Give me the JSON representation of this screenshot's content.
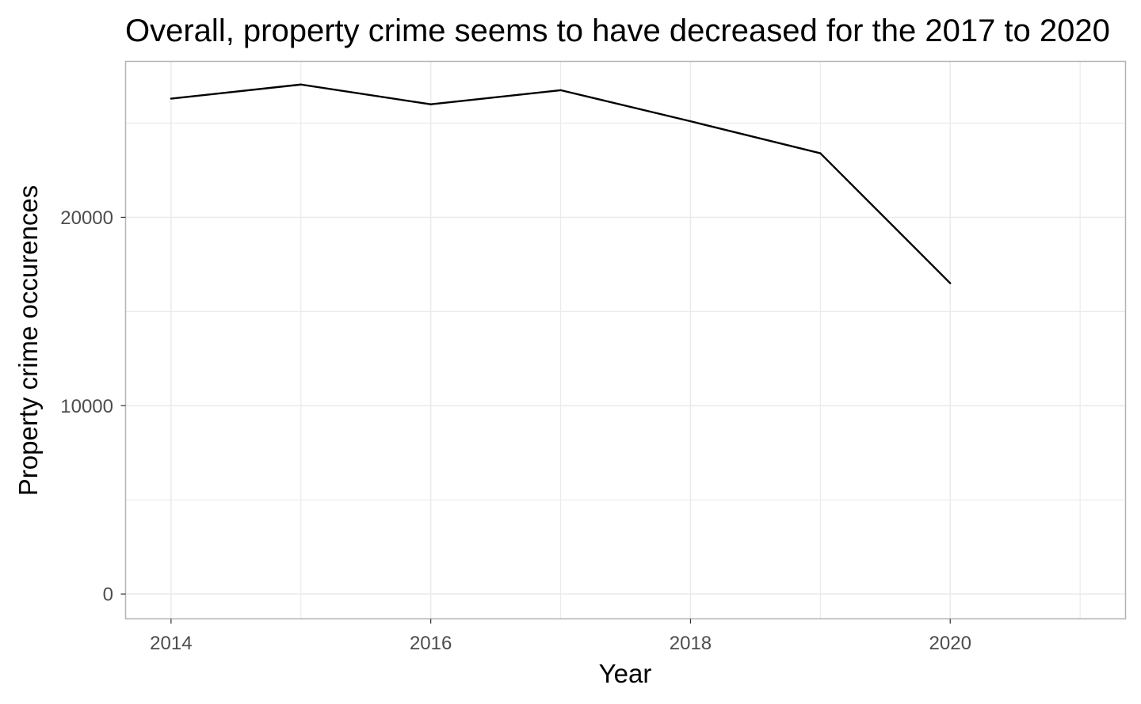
{
  "chart_data": {
    "type": "line",
    "title": "Overall, property crime seems to have decreased for the 2017 to 2020",
    "xlabel": "Year",
    "ylabel": "Property crime occurences",
    "x": [
      2014,
      2015,
      2016,
      2017,
      2018,
      2019,
      2020
    ],
    "series": [
      {
        "values": [
          26300,
          27050,
          26000,
          26750,
          25100,
          23400,
          16500
        ]
      }
    ],
    "x_ticks": [
      "2014",
      "2016",
      "2018",
      "2020"
    ],
    "x_tick_values": [
      2014,
      2016,
      2018,
      2020
    ],
    "y_ticks": [
      "0",
      "10000",
      "20000"
    ],
    "y_tick_values": [
      0,
      10000,
      20000
    ],
    "xlim": [
      2013.65,
      2021.35
    ],
    "ylim": [
      -1320,
      28280
    ],
    "grid": true,
    "legend": "none",
    "colors": {
      "line": "#000000",
      "grid": "#ebebeb",
      "panel_border": "#b3b3b3",
      "tick": "#4d4d4d"
    }
  }
}
